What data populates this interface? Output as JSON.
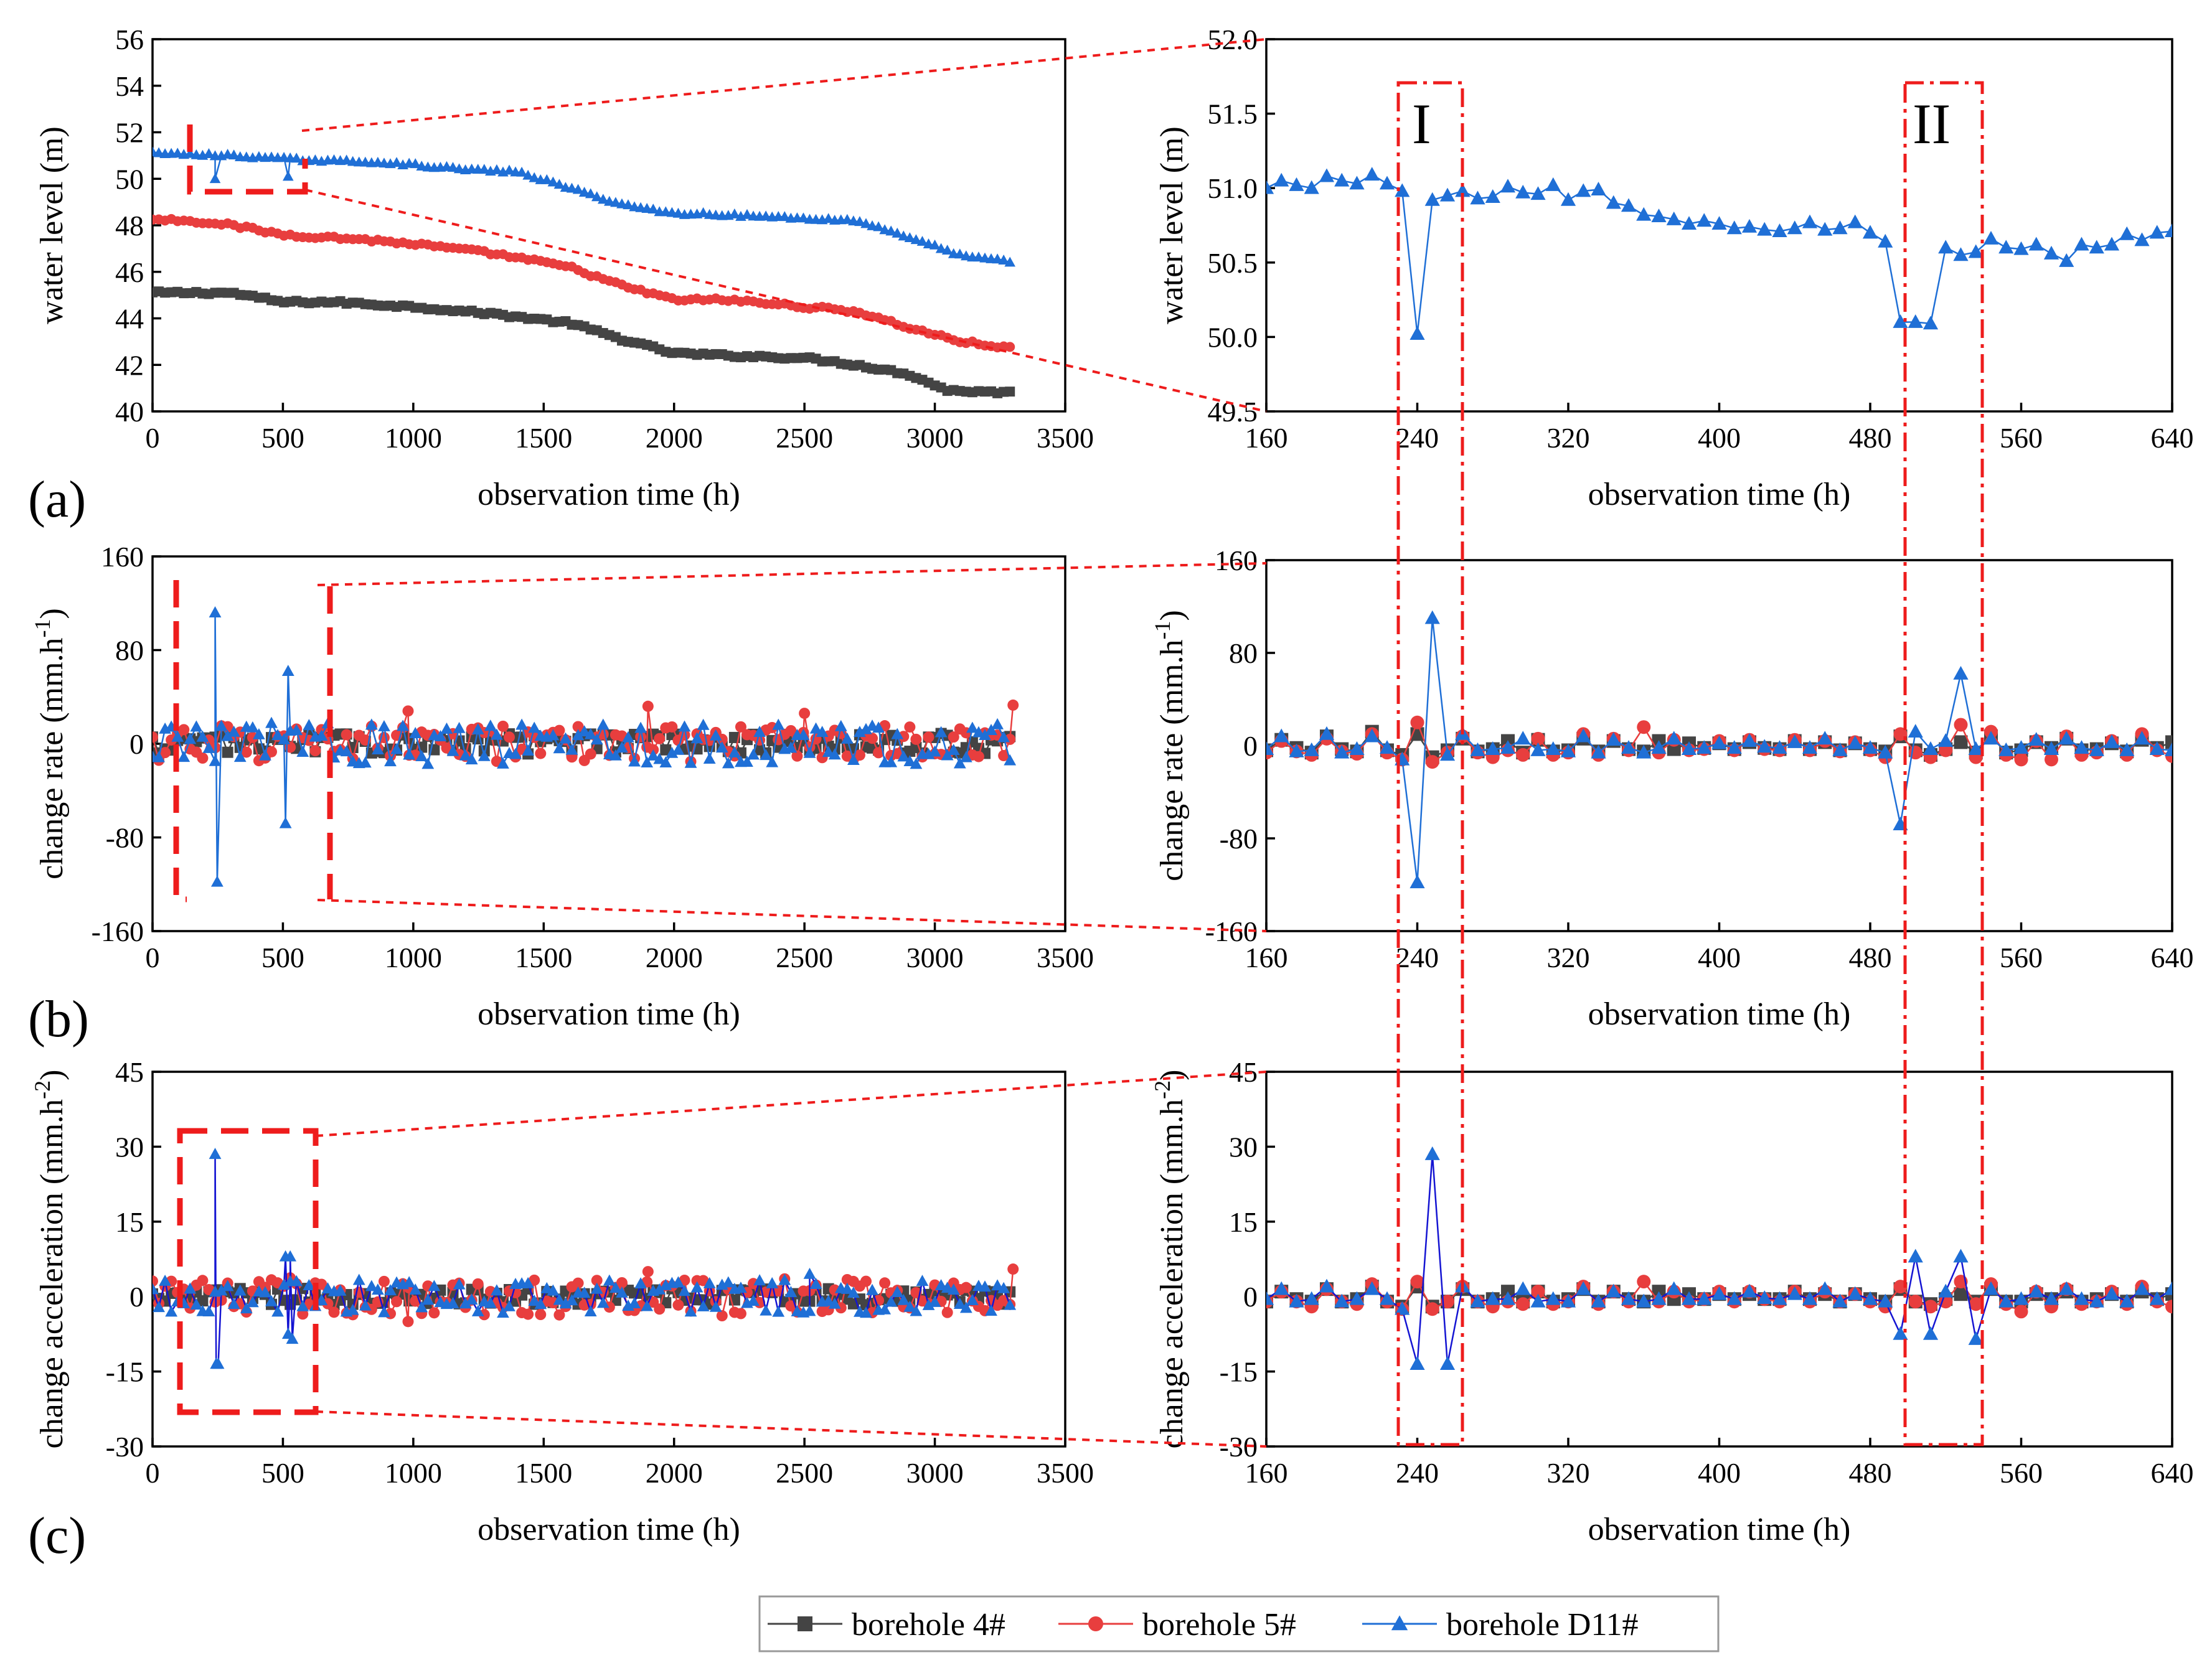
{
  "chart_data": [
    {
      "id": "a-left",
      "type": "scatter",
      "xlabel": "observation time (h)",
      "ylabel": "water level (m)",
      "xlim": [
        0,
        3500
      ],
      "ylim": [
        40,
        56
      ],
      "xticks": [
        0,
        500,
        1000,
        1500,
        2000,
        2500,
        3000,
        3500
      ],
      "yticks": [
        40,
        42,
        44,
        46,
        48,
        50,
        52,
        54,
        56
      ],
      "x_range": [
        0,
        3310
      ],
      "series": [
        {
          "name": "borehole 4#",
          "trend": [
            [
              0,
              45.1
            ],
            [
              300,
              45.1
            ],
            [
              500,
              44.7
            ],
            [
              700,
              44.7
            ],
            [
              1000,
              44.5
            ],
            [
              1300,
              44.2
            ],
            [
              1600,
              43.8
            ],
            [
              1800,
              43.1
            ],
            [
              2000,
              42.5
            ],
            [
              2200,
              42.4
            ],
            [
              2500,
              42.3
            ],
            [
              2700,
              42.0
            ],
            [
              2900,
              41.6
            ],
            [
              3050,
              40.9
            ],
            [
              3310,
              40.8
            ]
          ],
          "noise": 0.06,
          "spikes": []
        },
        {
          "name": "borehole 5#",
          "trend": [
            [
              0,
              48.3
            ],
            [
              250,
              48.1
            ],
            [
              500,
              47.6
            ],
            [
              800,
              47.4
            ],
            [
              1000,
              47.2
            ],
            [
              1300,
              46.8
            ],
            [
              1600,
              46.2
            ],
            [
              1800,
              45.4
            ],
            [
              2000,
              44.8
            ],
            [
              2200,
              44.8
            ],
            [
              2500,
              44.5
            ],
            [
              2700,
              44.3
            ],
            [
              2900,
              43.6
            ],
            [
              3100,
              43.0
            ],
            [
              3310,
              42.7
            ]
          ],
          "noise": 0.07,
          "spikes": []
        },
        {
          "name": "borehole D11#",
          "trend": [
            [
              0,
              51.1
            ],
            [
              300,
              51.0
            ],
            [
              600,
              50.8
            ],
            [
              900,
              50.7
            ],
            [
              1000,
              50.6
            ],
            [
              1200,
              50.4
            ],
            [
              1400,
              50.3
            ],
            [
              1600,
              49.6
            ],
            [
              1800,
              48.9
            ],
            [
              2000,
              48.5
            ],
            [
              2100,
              48.5
            ],
            [
              2300,
              48.4
            ],
            [
              2700,
              48.2
            ],
            [
              2900,
              47.5
            ],
            [
              3100,
              46.7
            ],
            [
              3310,
              46.4
            ]
          ],
          "noise": 0.05,
          "spikes": [
            [
              240,
              50.0
            ],
            [
              520,
              50.1
            ]
          ]
        }
      ]
    },
    {
      "id": "a-right",
      "type": "line",
      "xlabel": "observation time (h)",
      "ylabel": "water level (m)",
      "xlim": [
        160,
        640
      ],
      "ylim": [
        49.5,
        52.0
      ],
      "xticks": [
        160,
        240,
        320,
        400,
        480,
        560,
        640
      ],
      "yticks": [
        49.5,
        50.0,
        50.5,
        51.0,
        51.5,
        52.0
      ],
      "series": [
        {
          "name": "borehole D11#",
          "x": [
            160,
            168,
            176,
            184,
            192,
            200,
            208,
            216,
            224,
            232,
            240,
            248,
            256,
            264,
            272,
            280,
            288,
            296,
            304,
            312,
            320,
            328,
            336,
            344,
            352,
            360,
            368,
            376,
            384,
            392,
            400,
            408,
            416,
            424,
            432,
            440,
            448,
            456,
            464,
            472,
            480,
            488,
            496,
            504,
            512,
            520,
            528,
            536,
            544,
            552,
            560,
            568,
            576,
            584,
            592,
            600,
            608,
            616,
            624,
            632,
            640
          ],
          "y": [
            51.0,
            51.05,
            51.02,
            51.0,
            51.08,
            51.05,
            51.03,
            51.09,
            51.03,
            50.98,
            50.02,
            50.92,
            50.95,
            50.98,
            50.93,
            50.94,
            51.01,
            50.97,
            50.96,
            51.02,
            50.92,
            50.98,
            50.99,
            50.9,
            50.88,
            50.82,
            50.81,
            50.79,
            50.76,
            50.78,
            50.76,
            50.73,
            50.74,
            50.72,
            50.71,
            50.73,
            50.77,
            50.72,
            50.73,
            50.77,
            50.7,
            50.64,
            50.1,
            50.1,
            50.09,
            50.6,
            50.55,
            50.57,
            50.66,
            50.6,
            50.59,
            50.62,
            50.56,
            50.51,
            50.62,
            50.6,
            50.62,
            50.69,
            50.65,
            50.7,
            50.71
          ]
        }
      ]
    },
    {
      "id": "b-left",
      "type": "scatter",
      "xlabel": "observation time (h)",
      "ylabel": "change rate (mm.h-1)",
      "xlim": [
        0,
        3500
      ],
      "ylim": [
        -160,
        160
      ],
      "xticks": [
        0,
        500,
        1000,
        1500,
        2000,
        2500,
        3000,
        3500
      ],
      "yticks": [
        -160,
        -80,
        0,
        80,
        160
      ],
      "x_range": [
        0,
        3310
      ],
      "series": [
        {
          "name": "borehole 4#",
          "amplitude": 8,
          "spikes": []
        },
        {
          "name": "borehole 5#",
          "amplitude": 14,
          "spikes": [
            [
              980,
              28
            ],
            [
              1900,
              32
            ],
            [
              2500,
              26
            ],
            [
              3300,
              33
            ]
          ]
        },
        {
          "name": "borehole D11#",
          "amplitude": 16,
          "spikes": [
            [
              240,
              112
            ],
            [
              248,
              -118
            ],
            [
              510,
              -68
            ],
            [
              520,
              62
            ]
          ]
        }
      ]
    },
    {
      "id": "b-right",
      "type": "line",
      "xlabel": "observation time (h)",
      "ylabel": "change rate (mm.h-1)",
      "xlim": [
        160,
        640
      ],
      "ylim": [
        -160,
        160
      ],
      "xticks": [
        160,
        240,
        320,
        400,
        480,
        560,
        640
      ],
      "yticks": [
        -160,
        -80,
        0,
        80,
        160
      ],
      "x": [
        160,
        168,
        176,
        184,
        192,
        200,
        208,
        216,
        224,
        232,
        240,
        248,
        256,
        264,
        272,
        280,
        288,
        296,
        304,
        312,
        320,
        328,
        336,
        344,
        352,
        360,
        368,
        376,
        384,
        392,
        400,
        408,
        416,
        424,
        432,
        440,
        448,
        456,
        464,
        472,
        480,
        488,
        496,
        504,
        512,
        520,
        528,
        536,
        544,
        552,
        560,
        568,
        576,
        584,
        592,
        600,
        608,
        616,
        624,
        632,
        640
      ],
      "series": [
        {
          "name": "borehole 4#",
          "y": [
            -4,
            5,
            -2,
            -6,
            8,
            -3,
            -5,
            12,
            -4,
            -8,
            10,
            -10,
            -4,
            6,
            -5,
            -3,
            4,
            -6,
            5,
            -5,
            -4,
            6,
            -5,
            4,
            -3,
            -5,
            4,
            -3,
            2,
            -2,
            2,
            -3,
            3,
            -2,
            -3,
            4,
            -3,
            3,
            -4,
            2,
            -3,
            -5,
            8,
            -4,
            -8,
            -3,
            3,
            -6,
            8,
            -6,
            -4,
            3,
            -2,
            6,
            -4,
            -3,
            2,
            -5,
            5,
            -2,
            3
          ]
        },
        {
          "name": "borehole 5#",
          "y": [
            -6,
            4,
            -5,
            -8,
            6,
            -5,
            -7,
            10,
            -6,
            -12,
            20,
            -14,
            -6,
            8,
            -6,
            -10,
            -4,
            -8,
            6,
            -8,
            -6,
            10,
            -8,
            6,
            -4,
            16,
            -6,
            5,
            -4,
            -3,
            4,
            -4,
            5,
            -3,
            -4,
            5,
            -4,
            4,
            -5,
            3,
            -4,
            -10,
            10,
            -6,
            -10,
            -4,
            18,
            -10,
            12,
            -8,
            -12,
            4,
            -12,
            8,
            -8,
            -6,
            4,
            -8,
            10,
            -4,
            -9
          ]
        },
        {
          "name": "borehole D11#",
          "y": [
            -3,
            8,
            -5,
            -4,
            10,
            -6,
            -3,
            8,
            -2,
            -12,
            -118,
            110,
            -8,
            10,
            -4,
            -3,
            -2,
            6,
            -4,
            -3,
            -5,
            8,
            -6,
            5,
            -2,
            -6,
            -2,
            6,
            -3,
            -2,
            2,
            -2,
            4,
            -1,
            -2,
            3,
            -2,
            6,
            -4,
            2,
            -2,
            -6,
            -68,
            12,
            -3,
            4,
            62,
            -3,
            6,
            -4,
            -2,
            5,
            -3,
            6,
            -2,
            -4,
            3,
            -4,
            6,
            -3,
            -4
          ]
        }
      ]
    },
    {
      "id": "c-left",
      "type": "scatter",
      "xlabel": "observation time (h)",
      "ylabel": "change acceleration (mm.h-2)",
      "xlim": [
        0,
        3500
      ],
      "ylim": [
        -30,
        45
      ],
      "xticks": [
        0,
        500,
        1000,
        1500,
        2000,
        2500,
        3000,
        3500
      ],
      "yticks": [
        -30,
        -15,
        0,
        15,
        30,
        45
      ],
      "x_range": [
        0,
        3310
      ],
      "series": [
        {
          "name": "borehole 4#",
          "amplitude": 1.5,
          "spikes": []
        },
        {
          "name": "borehole 5#",
          "amplitude": 3.5,
          "spikes": [
            [
              980,
              -5
            ],
            [
              1900,
              5
            ],
            [
              3300,
              5.5
            ]
          ]
        },
        {
          "name": "borehole D11#",
          "amplitude": 3.0,
          "spikes": [
            [
              240,
              28.5
            ],
            [
              244,
              -13.5
            ],
            [
              252,
              -13.5
            ],
            [
              510,
              8
            ],
            [
              520,
              -7.5
            ],
            [
              528,
              8
            ],
            [
              536,
              -8.5
            ],
            [
              2520,
              4.5
            ]
          ]
        }
      ]
    },
    {
      "id": "c-right",
      "type": "line",
      "xlabel": "observation time (h)",
      "ylabel": "change acceleration (mm.h-2)",
      "xlim": [
        160,
        640
      ],
      "ylim": [
        -30,
        45
      ],
      "xticks": [
        160,
        240,
        320,
        400,
        480,
        560,
        640
      ],
      "yticks": [
        -30,
        -15,
        0,
        15,
        30,
        45
      ],
      "x": [
        160,
        168,
        176,
        184,
        192,
        200,
        208,
        216,
        224,
        232,
        240,
        248,
        256,
        264,
        272,
        280,
        288,
        296,
        304,
        312,
        320,
        328,
        336,
        344,
        352,
        360,
        368,
        376,
        384,
        392,
        400,
        408,
        416,
        424,
        432,
        440,
        448,
        456,
        464,
        472,
        480,
        488,
        496,
        504,
        512,
        520,
        528,
        536,
        544,
        552,
        560,
        568,
        576,
        584,
        592,
        600,
        608,
        616,
        624,
        632,
        640
      ],
      "series": [
        {
          "name": "borehole 4#",
          "y": [
            -1,
            1,
            -0.5,
            -1,
            1.5,
            -1,
            -0.5,
            2,
            -1,
            -2,
            2,
            -2,
            -1,
            1.5,
            -1,
            -0.5,
            1,
            -1,
            1,
            -1,
            -0.5,
            1.5,
            -1,
            1,
            -0.5,
            -1,
            1,
            -0.5,
            0.5,
            -0.5,
            0.5,
            -0.5,
            0.5,
            -0.5,
            -0.5,
            1,
            -0.5,
            0.5,
            -1,
            0.5,
            -0.5,
            -1,
            1.5,
            -1,
            -1.5,
            -0.5,
            0.5,
            -1,
            1.5,
            -1,
            -1,
            0.5,
            -0.5,
            1,
            -1,
            -0.5,
            0.5,
            -1,
            1,
            -0.5,
            0.5
          ]
        },
        {
          "name": "borehole 5#",
          "y": [
            -1,
            1,
            -1,
            -2,
            1.5,
            -1,
            -1.5,
            2.5,
            -1,
            -2.5,
            3,
            -2.5,
            -1,
            2,
            -1,
            -2,
            -1,
            -1.5,
            1,
            -1.5,
            -1,
            2,
            -1.5,
            1,
            -1,
            3,
            -1,
            1,
            -1,
            -0.5,
            1,
            -1,
            1,
            -0.5,
            -1,
            1,
            -1,
            1,
            -1,
            0.5,
            -1,
            -2,
            2,
            -1,
            -2,
            -1,
            3,
            -1.5,
            2.5,
            -1.5,
            -3,
            1,
            -2,
            1.5,
            -1.5,
            -1,
            1,
            -1.5,
            2,
            -1,
            -2
          ]
        },
        {
          "name": "borehole D11#",
          "y": [
            -0.5,
            1.5,
            -1,
            -0.5,
            2,
            -1,
            -0.5,
            1.5,
            -0.5,
            -2.5,
            -13.5,
            28.5,
            -13.5,
            2,
            -1,
            -0.5,
            -0.5,
            1.5,
            -1,
            -0.5,
            -1,
            1.5,
            -1,
            1,
            -0.5,
            -1,
            -0.5,
            1.5,
            -0.5,
            -0.5,
            0.5,
            -0.5,
            1,
            -0.3,
            -0.5,
            0.5,
            -0.5,
            1.5,
            -1,
            0.5,
            -0.5,
            -1,
            -7.5,
            8,
            -7.5,
            1,
            8,
            -8.5,
            1.5,
            -1,
            -0.5,
            1,
            -0.5,
            1.5,
            -0.5,
            -1,
            0.5,
            -1,
            1.5,
            -0.5,
            1.5
          ]
        }
      ]
    }
  ],
  "panel_tags": {
    "a": "(a)",
    "b": "(b)",
    "c": "(c)"
  },
  "region_labels": {
    "I": "I",
    "II": "II"
  },
  "legend": [
    {
      "name": "borehole 4#",
      "marker": "square",
      "color": "#444444"
    },
    {
      "name": "borehole 5#",
      "marker": "circle",
      "color": "#e83e3e"
    },
    {
      "name": "borehole D11#",
      "marker": "triangle",
      "color": "#1f6fd6"
    }
  ],
  "colors": {
    "borehole 4#": "#444444",
    "borehole 5#": "#e83e3e",
    "borehole D11#": "#1f6fd6",
    "highlight": "#ee1c1c",
    "accel_line": "#1414d2"
  }
}
